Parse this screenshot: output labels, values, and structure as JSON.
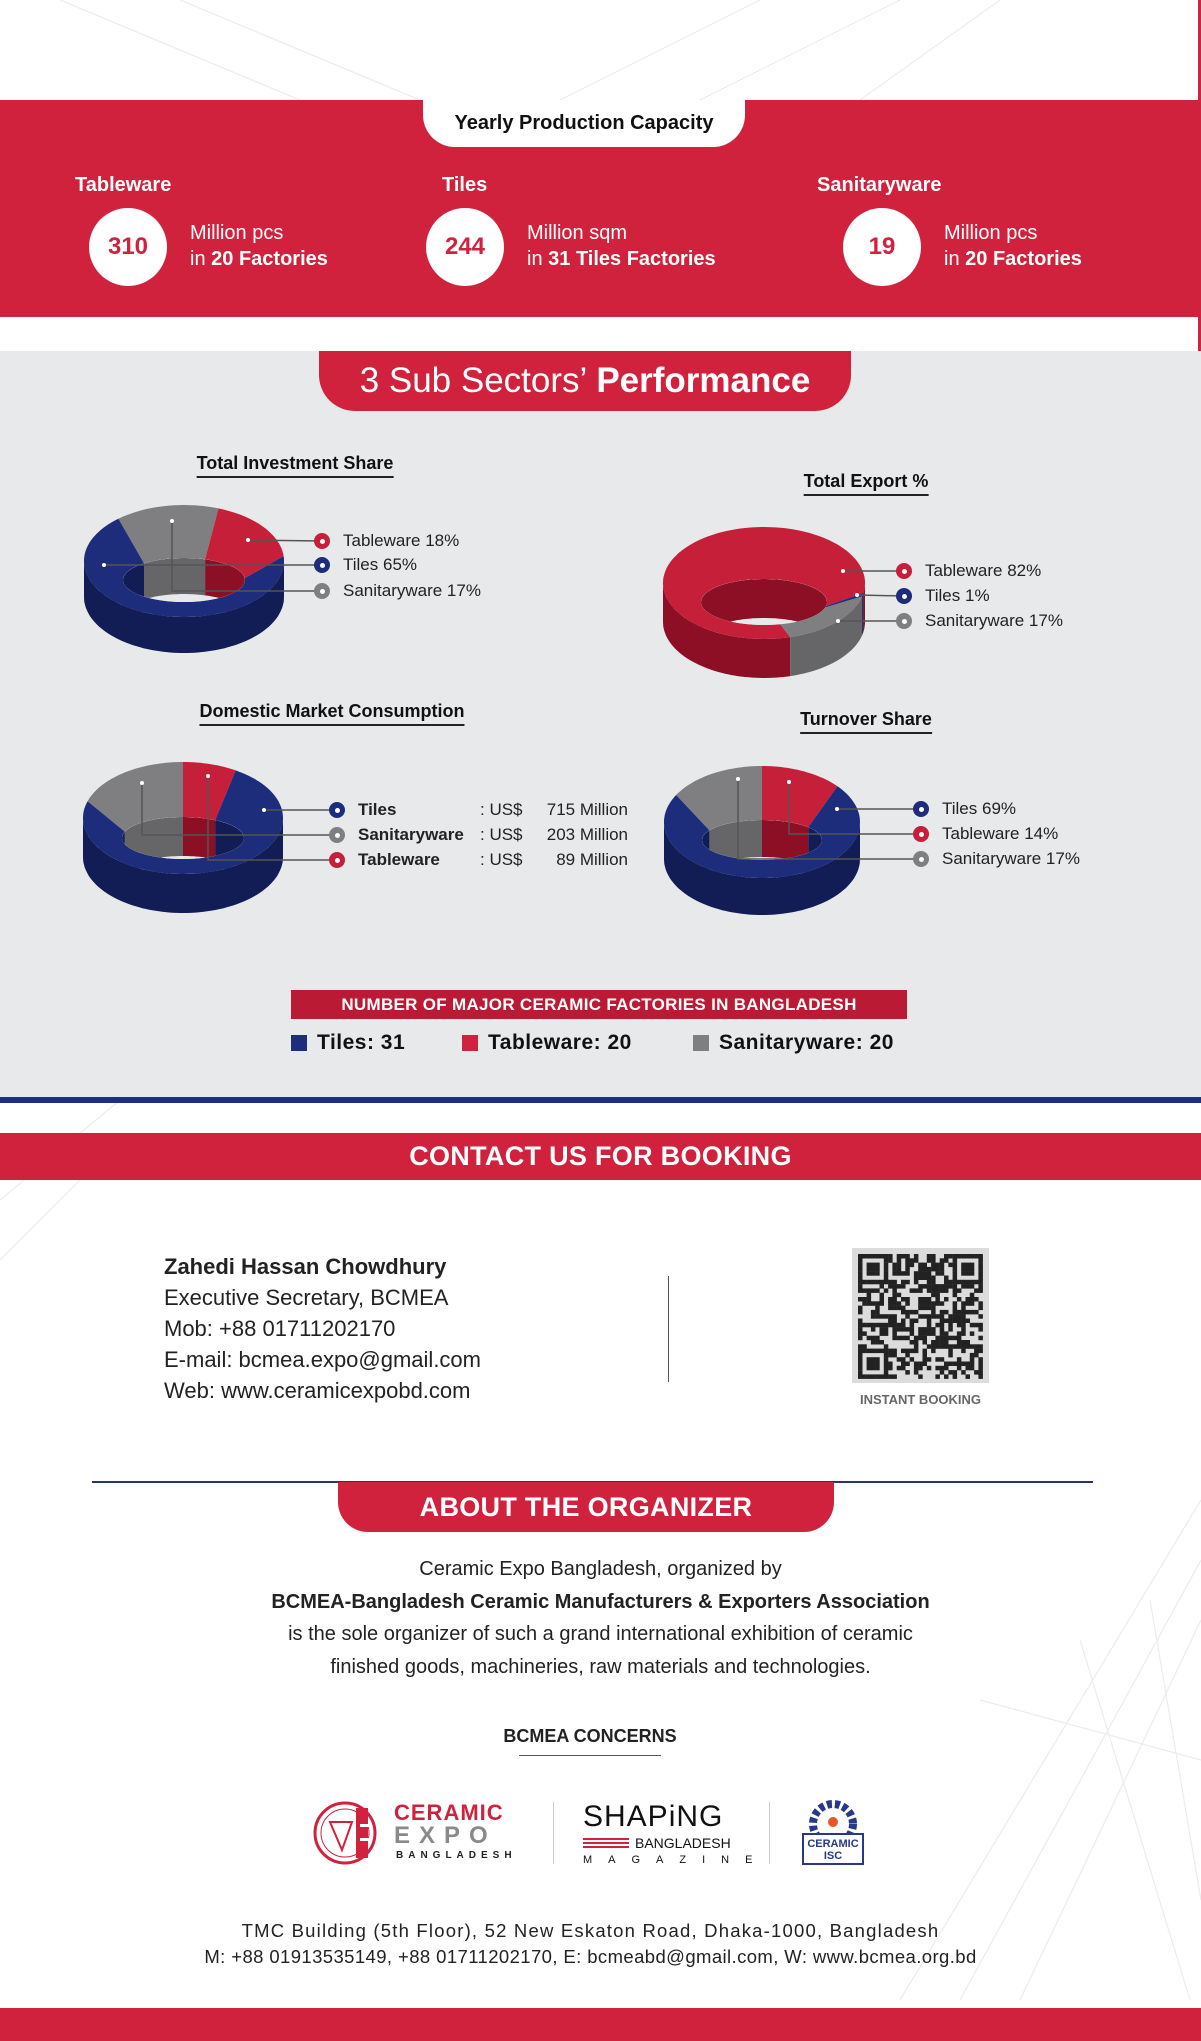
{
  "production": {
    "title": "Yearly Production Capacity",
    "items": [
      {
        "name": "Tableware",
        "value": "310",
        "unit": "Million pcs",
        "prefix": "in",
        "factories": "20 Factories"
      },
      {
        "name": "Tiles",
        "value": "244",
        "unit": "Million sqm",
        "prefix": "in",
        "factories": "31 Tiles Factories"
      },
      {
        "name": "Sanitaryware",
        "value": "19",
        "unit": "Million pcs",
        "prefix": "in",
        "factories": "20 Factories"
      }
    ]
  },
  "performance": {
    "title_light": "3 Sub Sectors’",
    "title_bold": "Performance"
  },
  "colors": {
    "Tiles": "#1e2c7c",
    "Tableware": "#c61f3a",
    "Sanitaryware": "#7f7f81",
    "brand_red": "#d0213d",
    "brand_blue": "#1b2f84"
  },
  "chart_data": [
    {
      "type": "pie",
      "title": "Total Investment Share",
      "categories": [
        "Tableware",
        "Tiles",
        "Sanitaryware"
      ],
      "values": [
        18,
        65,
        17
      ],
      "unit": "%"
    },
    {
      "type": "pie",
      "title": "Total Export %",
      "categories": [
        "Tableware",
        "Tiles",
        "Sanitaryware"
      ],
      "values": [
        82,
        1,
        17
      ],
      "unit": "%"
    },
    {
      "type": "pie",
      "title": "Domestic Market Consumption",
      "categories": [
        "Tiles",
        "Sanitaryware",
        "Tableware"
      ],
      "values": [
        715,
        203,
        89
      ],
      "currency": "US$",
      "unit": "Million"
    },
    {
      "type": "pie",
      "title": "Turnover Share",
      "categories": [
        "Tiles",
        "Tableware",
        "Sanitaryware"
      ],
      "values": [
        69,
        14,
        17
      ],
      "unit": "%"
    }
  ],
  "factories": {
    "title": "NUMBER OF MAJOR CERAMIC FACTORIES IN BANGLADESH",
    "items": [
      {
        "label": "Tiles: 31",
        "color": "#1e2c7c"
      },
      {
        "label": "Tableware: 20",
        "color": "#d0213d"
      },
      {
        "label": "Sanitaryware: 20",
        "color": "#7f7f81"
      }
    ]
  },
  "contact": {
    "title": "CONTACT US FOR BOOKING",
    "name": "Zahedi Hassan Chowdhury",
    "position": "Executive Secretary, BCMEA",
    "mobile": "Mob: +88 01711202170",
    "email": "E-mail: bcmea.expo@gmail.com",
    "web": "Web: www.ceramicexpobd.com",
    "qr_label": "INSTANT BOOKING"
  },
  "about": {
    "title": "ABOUT THE ORGANIZER",
    "line1": "Ceramic Expo Bangladesh, organized by",
    "line2": "BCMEA-Bangladesh Ceramic Manufacturers & Exporters Association",
    "line3": "is the sole organizer of such a grand international exhibition of ceramic",
    "line4": "finished goods, machineries, raw materials and technologies.",
    "concerns_title": "BCMEA CONCERNS"
  },
  "logos": {
    "ceramic_expo": {
      "l1": "CERAMIC",
      "l2": "EXPO",
      "l3": "BANGLADESH"
    },
    "shaping": {
      "l1": "SHAPiNG",
      "l2": "BANGLADESH",
      "l3": "MAGAZINE"
    },
    "isc": {
      "l1": "CERAMIC",
      "l2": "ISC"
    }
  },
  "footer": {
    "address": "TMC Building (5th Floor), 52 New Eskaton Road, Dhaka-1000, Bangladesh",
    "contacts": "M: +88 01913535149, +88 01711202170, E: bcmeabd@gmail.com, W: www.bcmea.org.bd"
  }
}
